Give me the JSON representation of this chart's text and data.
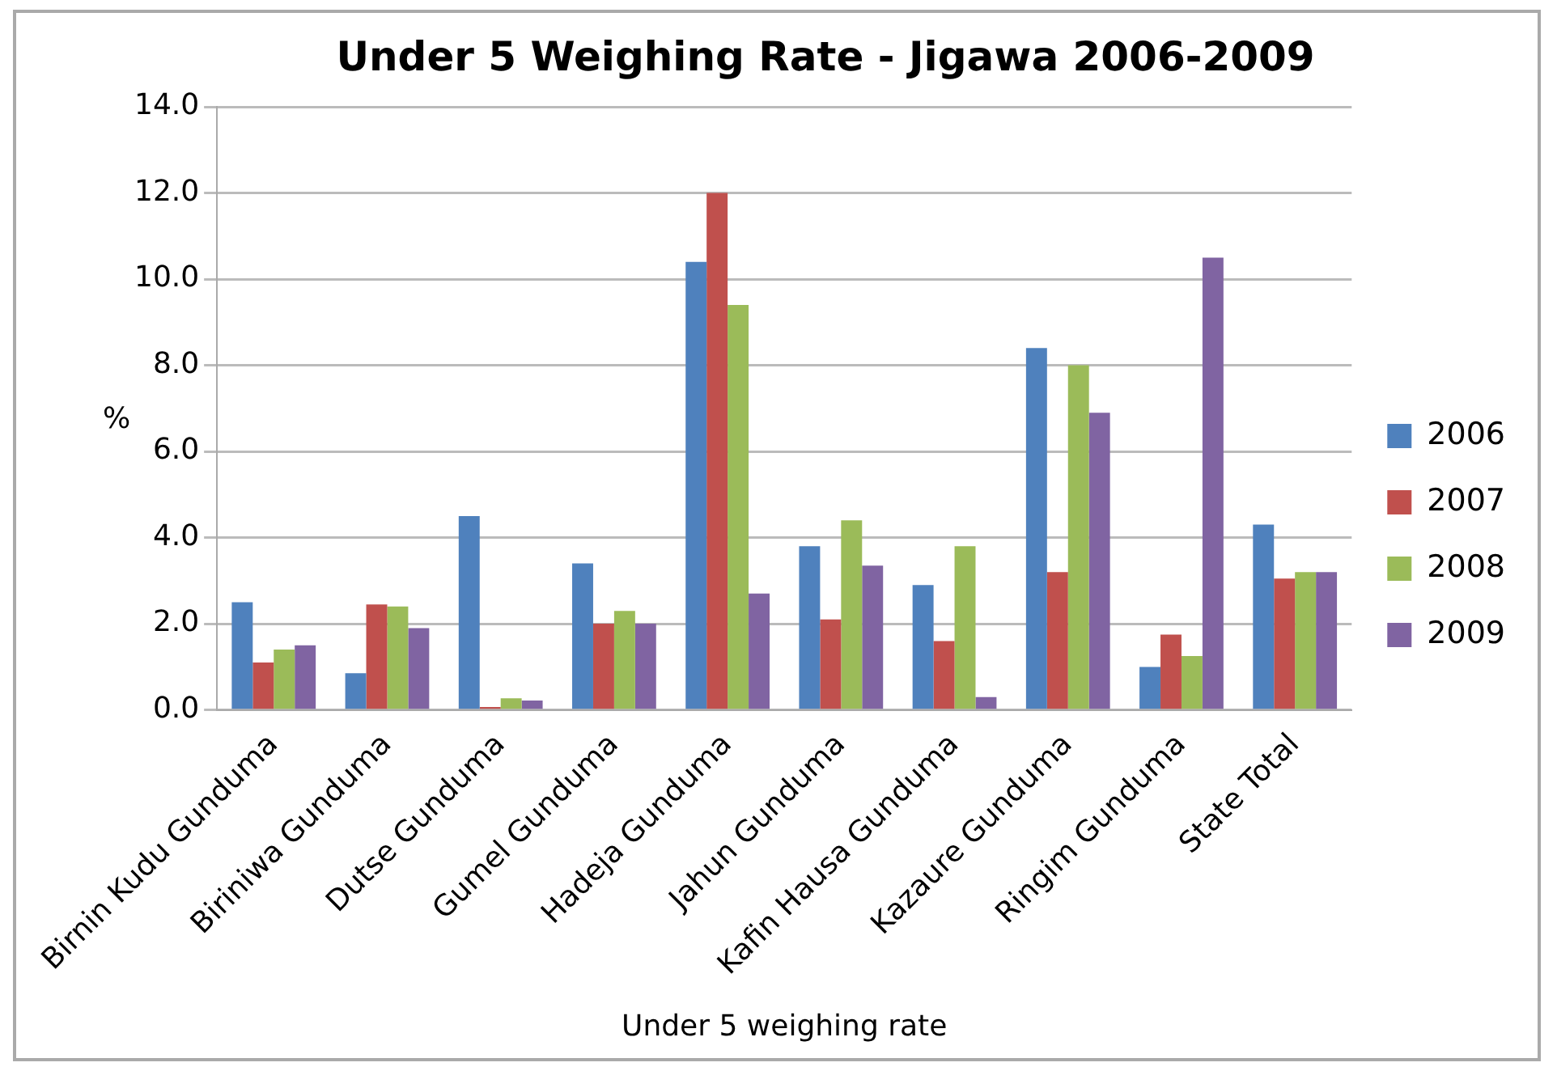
{
  "chart_data": {
    "type": "bar",
    "title": "Under 5 Weighing Rate - Jigawa 2006-2009",
    "xlabel": "Under 5 weighing rate",
    "ylabel": "%",
    "categories": [
      "Birnin Kudu Gunduma",
      "Biriniwa Gunduma",
      "Dutse Gunduma",
      "Gumel Gunduma",
      "Hadeja Gunduma",
      "Jahun Gunduma",
      "Kafin Hausa Gunduma",
      "Kazaure Gunduma",
      "Ringim Gunduma",
      "State Total"
    ],
    "series": [
      {
        "name": "2006",
        "color": "#4f81bd",
        "values": [
          2.5,
          0.85,
          4.5,
          3.4,
          10.4,
          3.8,
          2.9,
          8.4,
          1.0,
          4.3
        ]
      },
      {
        "name": "2007",
        "color": "#c0504d",
        "values": [
          1.1,
          2.45,
          0.07,
          2.0,
          12.0,
          2.1,
          1.6,
          3.2,
          1.75,
          3.05
        ]
      },
      {
        "name": "2008",
        "color": "#9bbb59",
        "values": [
          1.4,
          2.4,
          0.27,
          2.3,
          9.4,
          4.4,
          3.8,
          8.0,
          1.25,
          3.2
        ]
      },
      {
        "name": "2009",
        "color": "#8064a2",
        "values": [
          1.5,
          1.9,
          0.22,
          2.0,
          2.7,
          3.35,
          0.3,
          6.9,
          10.5,
          3.2
        ]
      }
    ],
    "ylim": [
      0,
      14
    ],
    "yticks": [
      {
        "value": 0,
        "label": "0.0"
      },
      {
        "value": 2,
        "label": "2.0"
      },
      {
        "value": 4,
        "label": "4.0"
      },
      {
        "value": 6,
        "label": "6.0"
      },
      {
        "value": 8,
        "label": "8.0"
      },
      {
        "value": 10,
        "label": "10.0"
      },
      {
        "value": 12,
        "label": "12.0"
      },
      {
        "value": 14,
        "label": "14.0"
      }
    ],
    "grid": "y",
    "legend": "right"
  }
}
